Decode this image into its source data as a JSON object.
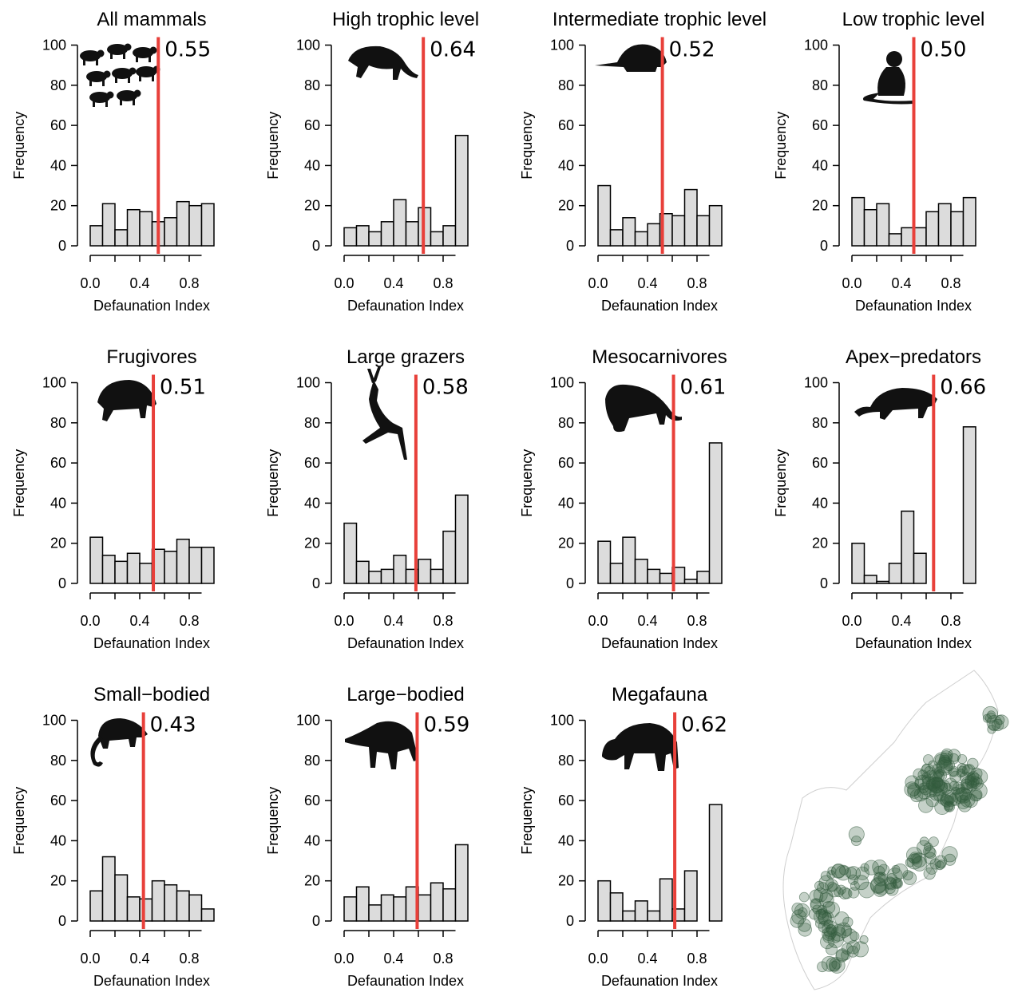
{
  "chart_data": [
    {
      "type": "bar",
      "title": "All mammals",
      "xlabel": "Defaunation Index",
      "ylabel": "Frequency",
      "xticks": [
        "0.0",
        "0.4",
        "0.8"
      ],
      "yticks": [
        "0",
        "20",
        "40",
        "60",
        "80",
        "100"
      ],
      "ylim": [
        0,
        100
      ],
      "xlim": [
        0,
        1
      ],
      "bin_width": 0.1,
      "values": [
        10,
        21,
        8,
        18,
        17,
        12,
        14,
        22,
        20,
        21
      ],
      "marker_value": 0.55,
      "marker_label": "0.55",
      "silhouette": "mammal-group-icon"
    },
    {
      "type": "bar",
      "title": "High trophic level",
      "xlabel": "Defaunation Index",
      "ylabel": "Frequency",
      "xticks": [
        "0.0",
        "0.4",
        "0.8"
      ],
      "yticks": [
        "0",
        "20",
        "40",
        "60",
        "80",
        "100"
      ],
      "ylim": [
        0,
        100
      ],
      "xlim": [
        0,
        1
      ],
      "bin_width": 0.1,
      "values": [
        9,
        10,
        7,
        12,
        23,
        12,
        19,
        7,
        10,
        55
      ],
      "marker_value": 0.64,
      "marker_label": "0.64",
      "silhouette": "puma-icon"
    },
    {
      "type": "bar",
      "title": "Intermediate trophic level",
      "xlabel": "Defaunation Index",
      "ylabel": "Frequency",
      "xticks": [
        "0.0",
        "0.4",
        "0.8"
      ],
      "yticks": [
        "0",
        "20",
        "40",
        "60",
        "80",
        "100"
      ],
      "ylim": [
        0,
        100
      ],
      "xlim": [
        0,
        1
      ],
      "bin_width": 0.1,
      "values": [
        30,
        8,
        14,
        7,
        11,
        16,
        15,
        28,
        15,
        20
      ],
      "marker_value": 0.52,
      "marker_label": "0.52",
      "silhouette": "armadillo-icon"
    },
    {
      "type": "bar",
      "title": "Low trophic level",
      "xlabel": "Defaunation Index",
      "ylabel": "Frequency",
      "xticks": [
        "0.0",
        "0.4",
        "0.8"
      ],
      "yticks": [
        "0",
        "20",
        "40",
        "60",
        "80",
        "100"
      ],
      "ylim": [
        0,
        100
      ],
      "xlim": [
        0,
        1
      ],
      "bin_width": 0.1,
      "values": [
        24,
        18,
        21,
        6,
        9,
        9,
        17,
        21,
        17,
        24
      ],
      "marker_value": 0.5,
      "marker_label": "0.50",
      "silhouette": "monkey-icon"
    },
    {
      "type": "bar",
      "title": "Frugivores",
      "xlabel": "Defaunation Index",
      "ylabel": "Frequency",
      "xticks": [
        "0.0",
        "0.4",
        "0.8"
      ],
      "yticks": [
        "0",
        "20",
        "40",
        "60",
        "80",
        "100"
      ],
      "ylim": [
        0,
        100
      ],
      "xlim": [
        0,
        1
      ],
      "bin_width": 0.1,
      "values": [
        23,
        14,
        11,
        15,
        10,
        17,
        16,
        22,
        18,
        18
      ],
      "marker_value": 0.51,
      "marker_label": "0.51",
      "silhouette": "agouti-icon"
    },
    {
      "type": "bar",
      "title": "Large grazers",
      "xlabel": "Defaunation Index",
      "ylabel": "Frequency",
      "xticks": [
        "0.0",
        "0.4",
        "0.8"
      ],
      "yticks": [
        "0",
        "20",
        "40",
        "60",
        "80",
        "100"
      ],
      "ylim": [
        0,
        100
      ],
      "xlim": [
        0,
        1
      ],
      "bin_width": 0.1,
      "values": [
        30,
        11,
        6,
        7,
        14,
        7,
        12,
        7,
        26,
        44
      ],
      "marker_value": 0.58,
      "marker_label": "0.58",
      "silhouette": "deer-icon"
    },
    {
      "type": "bar",
      "title": "Mesocarnivores",
      "xlabel": "Defaunation Index",
      "ylabel": "Frequency",
      "xticks": [
        "0.0",
        "0.4",
        "0.8"
      ],
      "yticks": [
        "0",
        "20",
        "40",
        "60",
        "80",
        "100"
      ],
      "ylim": [
        0,
        100
      ],
      "xlim": [
        0,
        1
      ],
      "bin_width": 0.1,
      "values": [
        21,
        10,
        23,
        12,
        7,
        5,
        8,
        2,
        6,
        70
      ],
      "marker_value": 0.61,
      "marker_label": "0.61",
      "silhouette": "ocelot-icon"
    },
    {
      "type": "bar",
      "title": "Apex−predators",
      "xlabel": "Defaunation Index",
      "ylabel": "Frequency",
      "xticks": [
        "0.0",
        "0.4",
        "0.8"
      ],
      "yticks": [
        "0",
        "20",
        "40",
        "60",
        "80",
        "100"
      ],
      "ylim": [
        0,
        100
      ],
      "xlim": [
        0,
        1
      ],
      "bin_width": 0.1,
      "values": [
        20,
        4,
        1,
        10,
        36,
        15,
        0,
        0,
        0,
        78
      ],
      "marker_value": 0.66,
      "marker_label": "0.66",
      "silhouette": "jaguar-icon"
    },
    {
      "type": "bar",
      "title": "Small−bodied",
      "xlabel": "Defaunation Index",
      "ylabel": "Frequency",
      "xticks": [
        "0.0",
        "0.4",
        "0.8"
      ],
      "yticks": [
        "0",
        "20",
        "40",
        "60",
        "80",
        "100"
      ],
      "ylim": [
        0,
        100
      ],
      "xlim": [
        0,
        1
      ],
      "bin_width": 0.1,
      "values": [
        15,
        32,
        23,
        12,
        11,
        20,
        18,
        15,
        13,
        6
      ],
      "marker_value": 0.43,
      "marker_label": "0.43",
      "silhouette": "opossum-icon"
    },
    {
      "type": "bar",
      "title": "Large−bodied",
      "xlabel": "Defaunation Index",
      "ylabel": "Frequency",
      "xticks": [
        "0.0",
        "0.4",
        "0.8"
      ],
      "yticks": [
        "0",
        "20",
        "40",
        "60",
        "80",
        "100"
      ],
      "ylim": [
        0,
        100
      ],
      "xlim": [
        0,
        1
      ],
      "bin_width": 0.1,
      "values": [
        12,
        17,
        8,
        13,
        12,
        17,
        13,
        19,
        16,
        38
      ],
      "marker_value": 0.59,
      "marker_label": "0.59",
      "silhouette": "peccary-icon"
    },
    {
      "type": "bar",
      "title": "Megafauna",
      "xlabel": "Defaunation Index",
      "ylabel": "Frequency",
      "xticks": [
        "0.0",
        "0.4",
        "0.8"
      ],
      "yticks": [
        "0",
        "20",
        "40",
        "60",
        "80",
        "100"
      ],
      "ylim": [
        0,
        100
      ],
      "xlim": [
        0,
        1
      ],
      "bin_width": 0.1,
      "values": [
        20,
        14,
        5,
        10,
        5,
        21,
        6,
        25,
        0,
        58
      ],
      "marker_value": 0.62,
      "marker_label": "0.62",
      "silhouette": "tapir-icon"
    }
  ],
  "colors": {
    "bar_fill": "#dcdcdc",
    "bar_stroke": "#000000",
    "marker_line": "#e8403a",
    "map_fill": "#2f5a3a"
  },
  "map": {
    "icon": "site-map-icon"
  }
}
